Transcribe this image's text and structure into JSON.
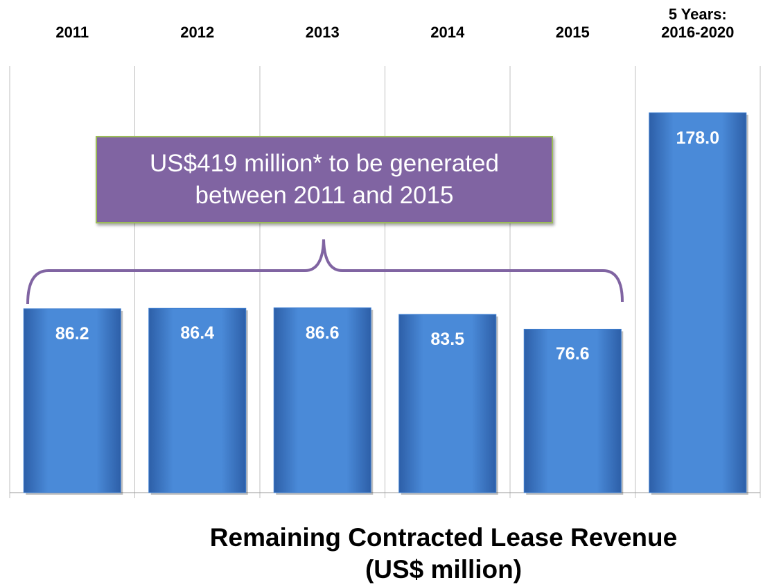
{
  "chart_data": {
    "type": "bar",
    "title": "Remaining Contracted Lease Revenue (US$ million)",
    "annotation": "US$419 million* to be generated between 2011 and 2015",
    "categories": [
      "2011",
      "2012",
      "2013",
      "2014",
      "2015",
      "5 Years:\n2016-2020"
    ],
    "values": [
      86.2,
      86.4,
      86.6,
      83.5,
      76.6,
      178.0
    ],
    "value_labels": [
      "86.2",
      "86.4",
      "86.6",
      "83.5",
      "76.6",
      "178.0"
    ],
    "color": "#3f7fd0",
    "ylim": [
      0,
      200
    ]
  }
}
